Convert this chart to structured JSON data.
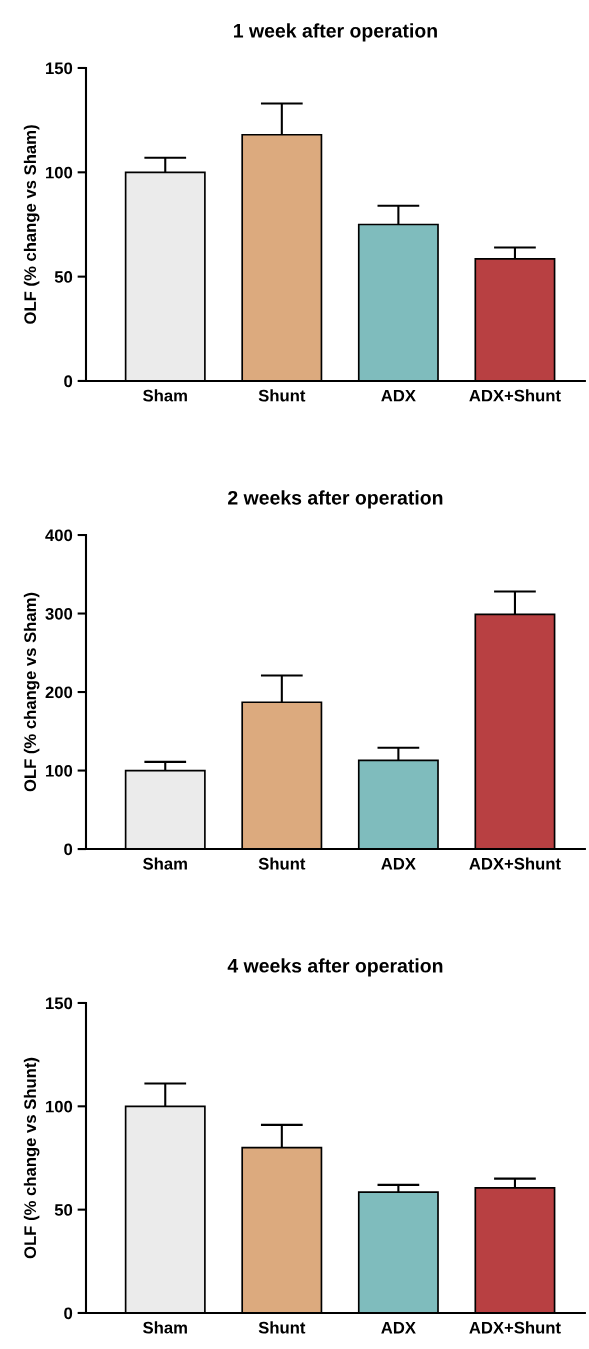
{
  "chart_data": [
    {
      "type": "bar",
      "title": "1 week after operation",
      "ylabel": "OLF (% change vs Sham)",
      "categories": [
        "Sham",
        "Shunt",
        "ADX",
        "ADX+Shunt"
      ],
      "values": [
        100,
        118,
        75,
        58.5
      ],
      "colors": [
        "#ebebeb",
        "#dcaa7e",
        "#7fbcbd",
        "#b84042"
      ],
      "errors": [
        [
          100,
          107
        ],
        [
          118,
          133
        ],
        [
          75,
          84
        ],
        [
          58.5,
          64
        ]
      ],
      "ylim": [
        0,
        150
      ],
      "yticks": [
        0,
        50,
        100,
        150
      ],
      "grid": false,
      "legend": false
    },
    {
      "type": "bar",
      "title": "2 weeks after operation",
      "ylabel": "OLF (% change vs Sham)",
      "categories": [
        "Sham",
        "Shunt",
        "ADX",
        "ADX+Shunt"
      ],
      "values": [
        100,
        187,
        113,
        299
      ],
      "colors": [
        "#ebebeb",
        "#dcaa7e",
        "#7fbcbd",
        "#b84042"
      ],
      "errors": [
        [
          100,
          111
        ],
        [
          187,
          221
        ],
        [
          113,
          129
        ],
        [
          299,
          328
        ]
      ],
      "ylim": [
        0,
        400
      ],
      "yticks": [
        0,
        100,
        200,
        300,
        400
      ],
      "grid": false,
      "legend": false
    },
    {
      "type": "bar",
      "title": "4 weeks after operation",
      "ylabel": "OLF (% change vs Shunt)",
      "categories": [
        "Sham",
        "Shunt",
        "ADX",
        "ADX+Shunt"
      ],
      "values": [
        100,
        80,
        58.5,
        60.5
      ],
      "colors": [
        "#ebebeb",
        "#dcaa7e",
        "#7fbcbd",
        "#b84042"
      ],
      "errors": [
        [
          100,
          111
        ],
        [
          80,
          91
        ],
        [
          58.5,
          62
        ],
        [
          60.5,
          65
        ]
      ],
      "ylim": [
        0,
        150
      ],
      "yticks": [
        0,
        50,
        100,
        150
      ],
      "grid": false,
      "legend": false
    }
  ]
}
